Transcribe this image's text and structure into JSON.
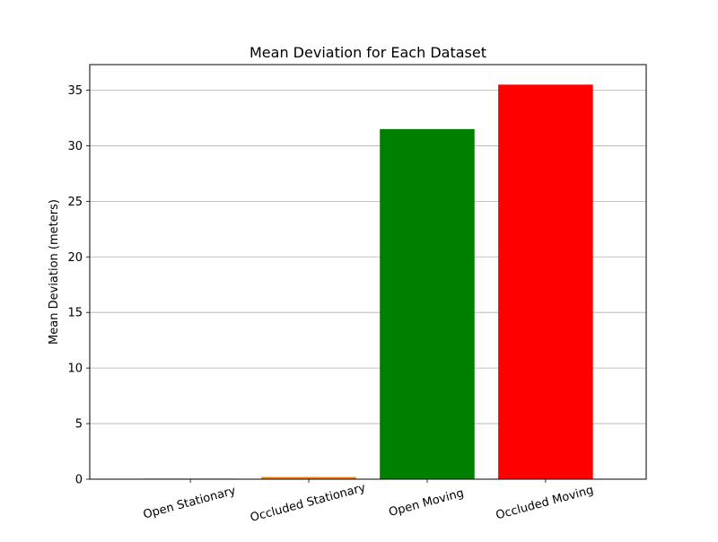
{
  "colors": {
    "grid": "#b0b0b0",
    "axis": "#000000"
  },
  "chart_data": {
    "type": "bar",
    "title": "Mean Deviation for Each Dataset",
    "xlabel": "",
    "ylabel": "Mean Deviation (meters)",
    "categories": [
      "Open Stationary",
      "Occluded Stationary",
      "Open Moving",
      "Occluded Moving"
    ],
    "values": [
      0.05,
      0.2,
      31.5,
      35.5
    ],
    "bar_colors": [
      "#1f77b4",
      "#ff7f0e",
      "#008000",
      "#ff0000"
    ],
    "ylim": [
      0,
      37.3
    ],
    "yticks": [
      0,
      5,
      10,
      15,
      20,
      25,
      30,
      35
    ],
    "grid": {
      "y": true,
      "x": false
    },
    "xtick_rotation_deg": -15
  }
}
